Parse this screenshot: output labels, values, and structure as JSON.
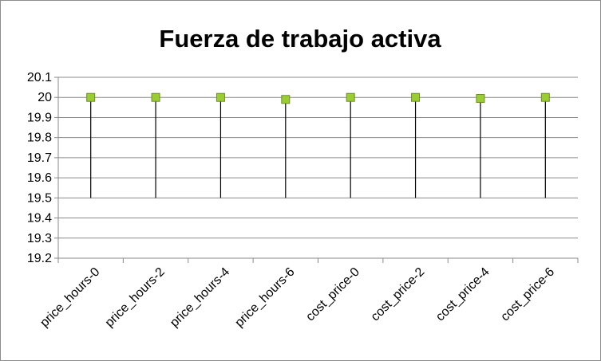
{
  "chart_data": {
    "type": "line",
    "title": "Fuerza de trabajo activa",
    "xlabel": "",
    "ylabel": "",
    "categories": [
      "price_hours-0",
      "price_hours-2",
      "price_hours-4",
      "price_hours-6",
      "cost_price-0",
      "cost_price-2",
      "cost_price-4",
      "cost_price-6"
    ],
    "y_ticks": [
      "20.1",
      "20",
      "19.9",
      "19.8",
      "19.7",
      "19.6",
      "19.5",
      "19.4",
      "19.3",
      "19.2"
    ],
    "ylim": [
      19.2,
      20.1
    ],
    "series": [
      {
        "values": [
          20.0,
          20.0,
          20.0,
          19.99,
          20.0,
          20.0,
          19.995,
          20.0
        ]
      }
    ],
    "drop_lines_to": 19.5,
    "grid": true,
    "legend": "none",
    "marker_color": "#9acd32",
    "marker_edge": "#6b8e23",
    "line_color": "#000000",
    "grid_color": "#8a8a8a"
  }
}
